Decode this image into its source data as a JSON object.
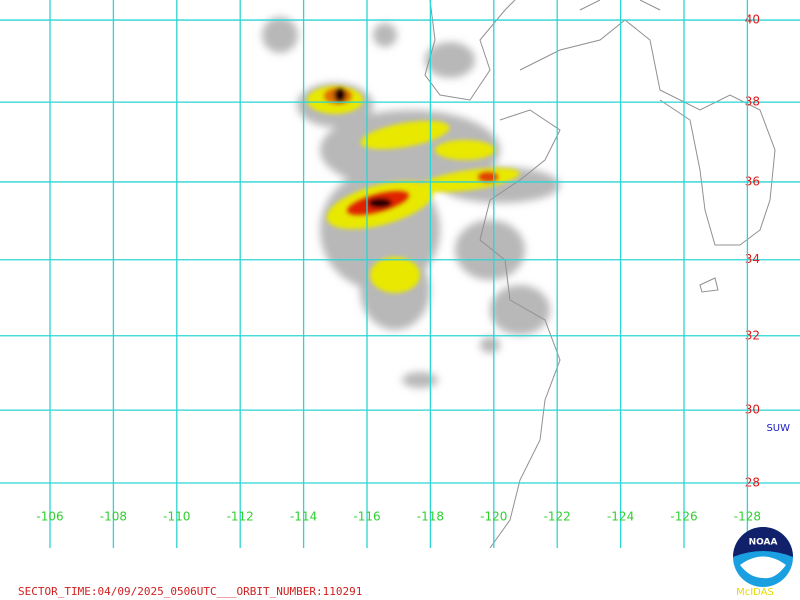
{
  "map": {
    "lat_labels": [
      40,
      38,
      36,
      34,
      32,
      30,
      28
    ],
    "lon_labels": [
      -106,
      -108,
      -110,
      -112,
      -114,
      -116,
      -118,
      -120,
      -122,
      -124,
      -126,
      -128
    ],
    "station": "SUW",
    "footer": "SECTOR_TIME:04/09/2025_0506UTC___ORBIT_NUMBER:110291",
    "logo": {
      "emblem": "NOAA",
      "caption": "McIDAS"
    }
  }
}
